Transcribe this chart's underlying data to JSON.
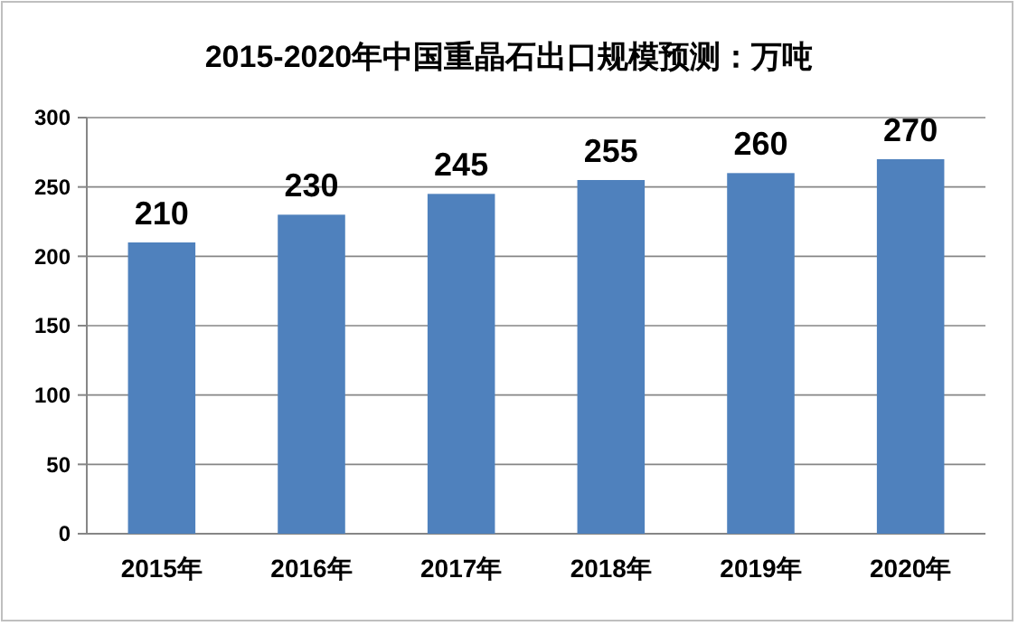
{
  "chart_data": {
    "type": "bar",
    "title": "2015-2020年中国重晶石出口规模预测：万吨",
    "categories": [
      "2015年",
      "2016年",
      "2017年",
      "2018年",
      "2019年",
      "2020年"
    ],
    "values": [
      210,
      230,
      245,
      255,
      260,
      270
    ],
    "color": "#4f81bd",
    "ylim": [
      0,
      300
    ],
    "yticks": [
      0,
      50,
      100,
      150,
      200,
      250,
      300
    ],
    "grid": "y",
    "data_labels": true
  }
}
